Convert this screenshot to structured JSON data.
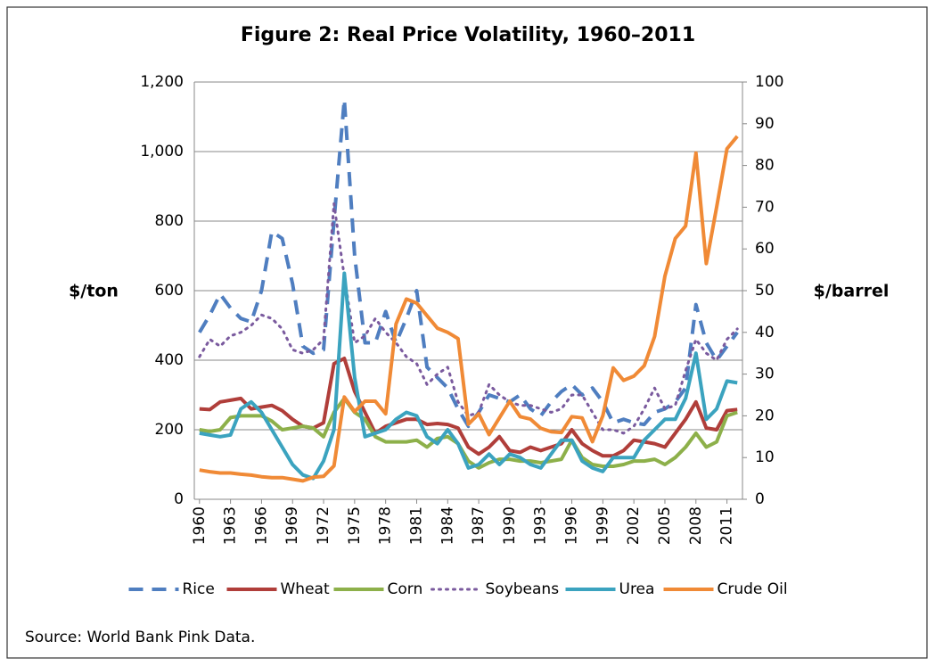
{
  "chart_data": {
    "type": "line",
    "title": "Figure 2: Real Price Volatility, 1960–2011",
    "ylabel": "$/ton",
    "y2label": "$/barrel",
    "source": "Source: World Bank Pink Data.",
    "x": [
      1960,
      1961,
      1962,
      1963,
      1964,
      1965,
      1966,
      1967,
      1968,
      1969,
      1970,
      1971,
      1972,
      1973,
      1974,
      1975,
      1976,
      1977,
      1978,
      1979,
      1980,
      1981,
      1982,
      1983,
      1984,
      1985,
      1986,
      1987,
      1988,
      1989,
      1990,
      1991,
      1992,
      1993,
      1994,
      1995,
      1996,
      1997,
      1998,
      1999,
      2000,
      2001,
      2002,
      2003,
      2004,
      2005,
      2006,
      2007,
      2008,
      2009,
      2010,
      2011,
      2012
    ],
    "xlim": [
      1959.5,
      2012.5
    ],
    "xticks": [
      1960,
      1963,
      1966,
      1969,
      1972,
      1975,
      1978,
      1981,
      1984,
      1987,
      1990,
      1993,
      1996,
      1999,
      2002,
      2005,
      2008,
      2011
    ],
    "ylim": [
      0,
      1200
    ],
    "yticks": [
      0,
      200,
      400,
      600,
      800,
      {
        "value": 1000,
        "label": "1,000"
      },
      {
        "value": 1200,
        "label": "1,200"
      }
    ],
    "y2lim": [
      0,
      100
    ],
    "y2ticks": [
      0,
      10,
      20,
      30,
      40,
      50,
      60,
      70,
      80,
      90,
      100
    ],
    "grid": true,
    "legend": "bottom",
    "series": [
      {
        "name": "Rice",
        "color": "#4f7ec0",
        "line_style": "dashed",
        "values": [
          480,
          530,
          590,
          550,
          520,
          510,
          600,
          770,
          750,
          620,
          440,
          420,
          430,
          800,
          1150,
          700,
          450,
          450,
          540,
          450,
          520,
          600,
          380,
          350,
          320,
          260,
          210,
          250,
          300,
          290,
          280,
          300,
          260,
          240,
          280,
          310,
          330,
          300,
          320,
          280,
          220,
          230,
          220,
          215,
          250,
          260,
          280,
          320,
          560,
          450,
          400,
          440,
          480
        ]
      },
      {
        "name": "Wheat",
        "color": "#b03e3a",
        "line_style": "solid",
        "values": [
          260,
          258,
          280,
          285,
          290,
          260,
          265,
          270,
          255,
          230,
          210,
          205,
          220,
          390,
          405,
          310,
          250,
          190,
          210,
          220,
          230,
          230,
          215,
          218,
          215,
          205,
          150,
          130,
          150,
          180,
          140,
          135,
          150,
          140,
          150,
          160,
          200,
          160,
          140,
          125,
          125,
          140,
          170,
          165,
          160,
          150,
          190,
          230,
          280,
          205,
          200,
          255,
          258
        ]
      },
      {
        "name": "Corn",
        "color": "#8db04a",
        "line_style": "solid",
        "values": [
          200,
          195,
          200,
          235,
          240,
          240,
          240,
          225,
          200,
          205,
          210,
          205,
          180,
          250,
          290,
          250,
          230,
          180,
          165,
          165,
          165,
          170,
          150,
          175,
          180,
          160,
          110,
          90,
          105,
          115,
          115,
          110,
          110,
          105,
          110,
          115,
          170,
          120,
          100,
          95,
          95,
          100,
          110,
          110,
          115,
          100,
          120,
          150,
          190,
          150,
          165,
          240,
          250
        ]
      },
      {
        "name": "Soybeans",
        "color": "#7a5a9e",
        "line_style": "dotted",
        "values": [
          410,
          460,
          440,
          470,
          480,
          500,
          530,
          520,
          490,
          430,
          420,
          430,
          460,
          850,
          640,
          450,
          470,
          520,
          480,
          450,
          410,
          390,
          330,
          360,
          380,
          280,
          240,
          250,
          330,
          300,
          280,
          270,
          270,
          260,
          250,
          260,
          300,
          300,
          250,
          200,
          200,
          190,
          210,
          260,
          320,
          260,
          270,
          370,
          460,
          420,
          400,
          460,
          490
        ]
      },
      {
        "name": "Urea",
        "color": "#3ba3bf",
        "line_style": "solid",
        "values": [
          190,
          185,
          180,
          185,
          260,
          280,
          250,
          200,
          150,
          100,
          70,
          60,
          110,
          200,
          650,
          350,
          180,
          190,
          200,
          230,
          250,
          240,
          180,
          160,
          200,
          160,
          90,
          100,
          130,
          100,
          130,
          120,
          100,
          90,
          130,
          170,
          170,
          110,
          90,
          80,
          120,
          120,
          120,
          170,
          200,
          230,
          230,
          290,
          420,
          230,
          260,
          340,
          335
        ]
      },
      {
        "name": "Crude Oil",
        "color": "#f08a36",
        "line_style": "solid",
        "axis": "y2",
        "values": [
          7,
          6.6,
          6.3,
          6.3,
          6,
          5.8,
          5.4,
          5.2,
          5.2,
          4.8,
          4.4,
          5.3,
          5.5,
          8,
          24.5,
          21,
          23.5,
          23.5,
          20.5,
          42,
          48,
          47,
          44,
          41,
          40,
          38.5,
          18,
          20.5,
          15.5,
          19.5,
          23.5,
          19.8,
          19.2,
          17,
          16.2,
          16,
          19.8,
          19.5,
          13.8,
          20,
          31.5,
          28.5,
          29.5,
          32,
          39,
          53.5,
          62.5,
          65.5,
          83,
          56.5,
          70,
          84,
          87
        ]
      }
    ]
  }
}
